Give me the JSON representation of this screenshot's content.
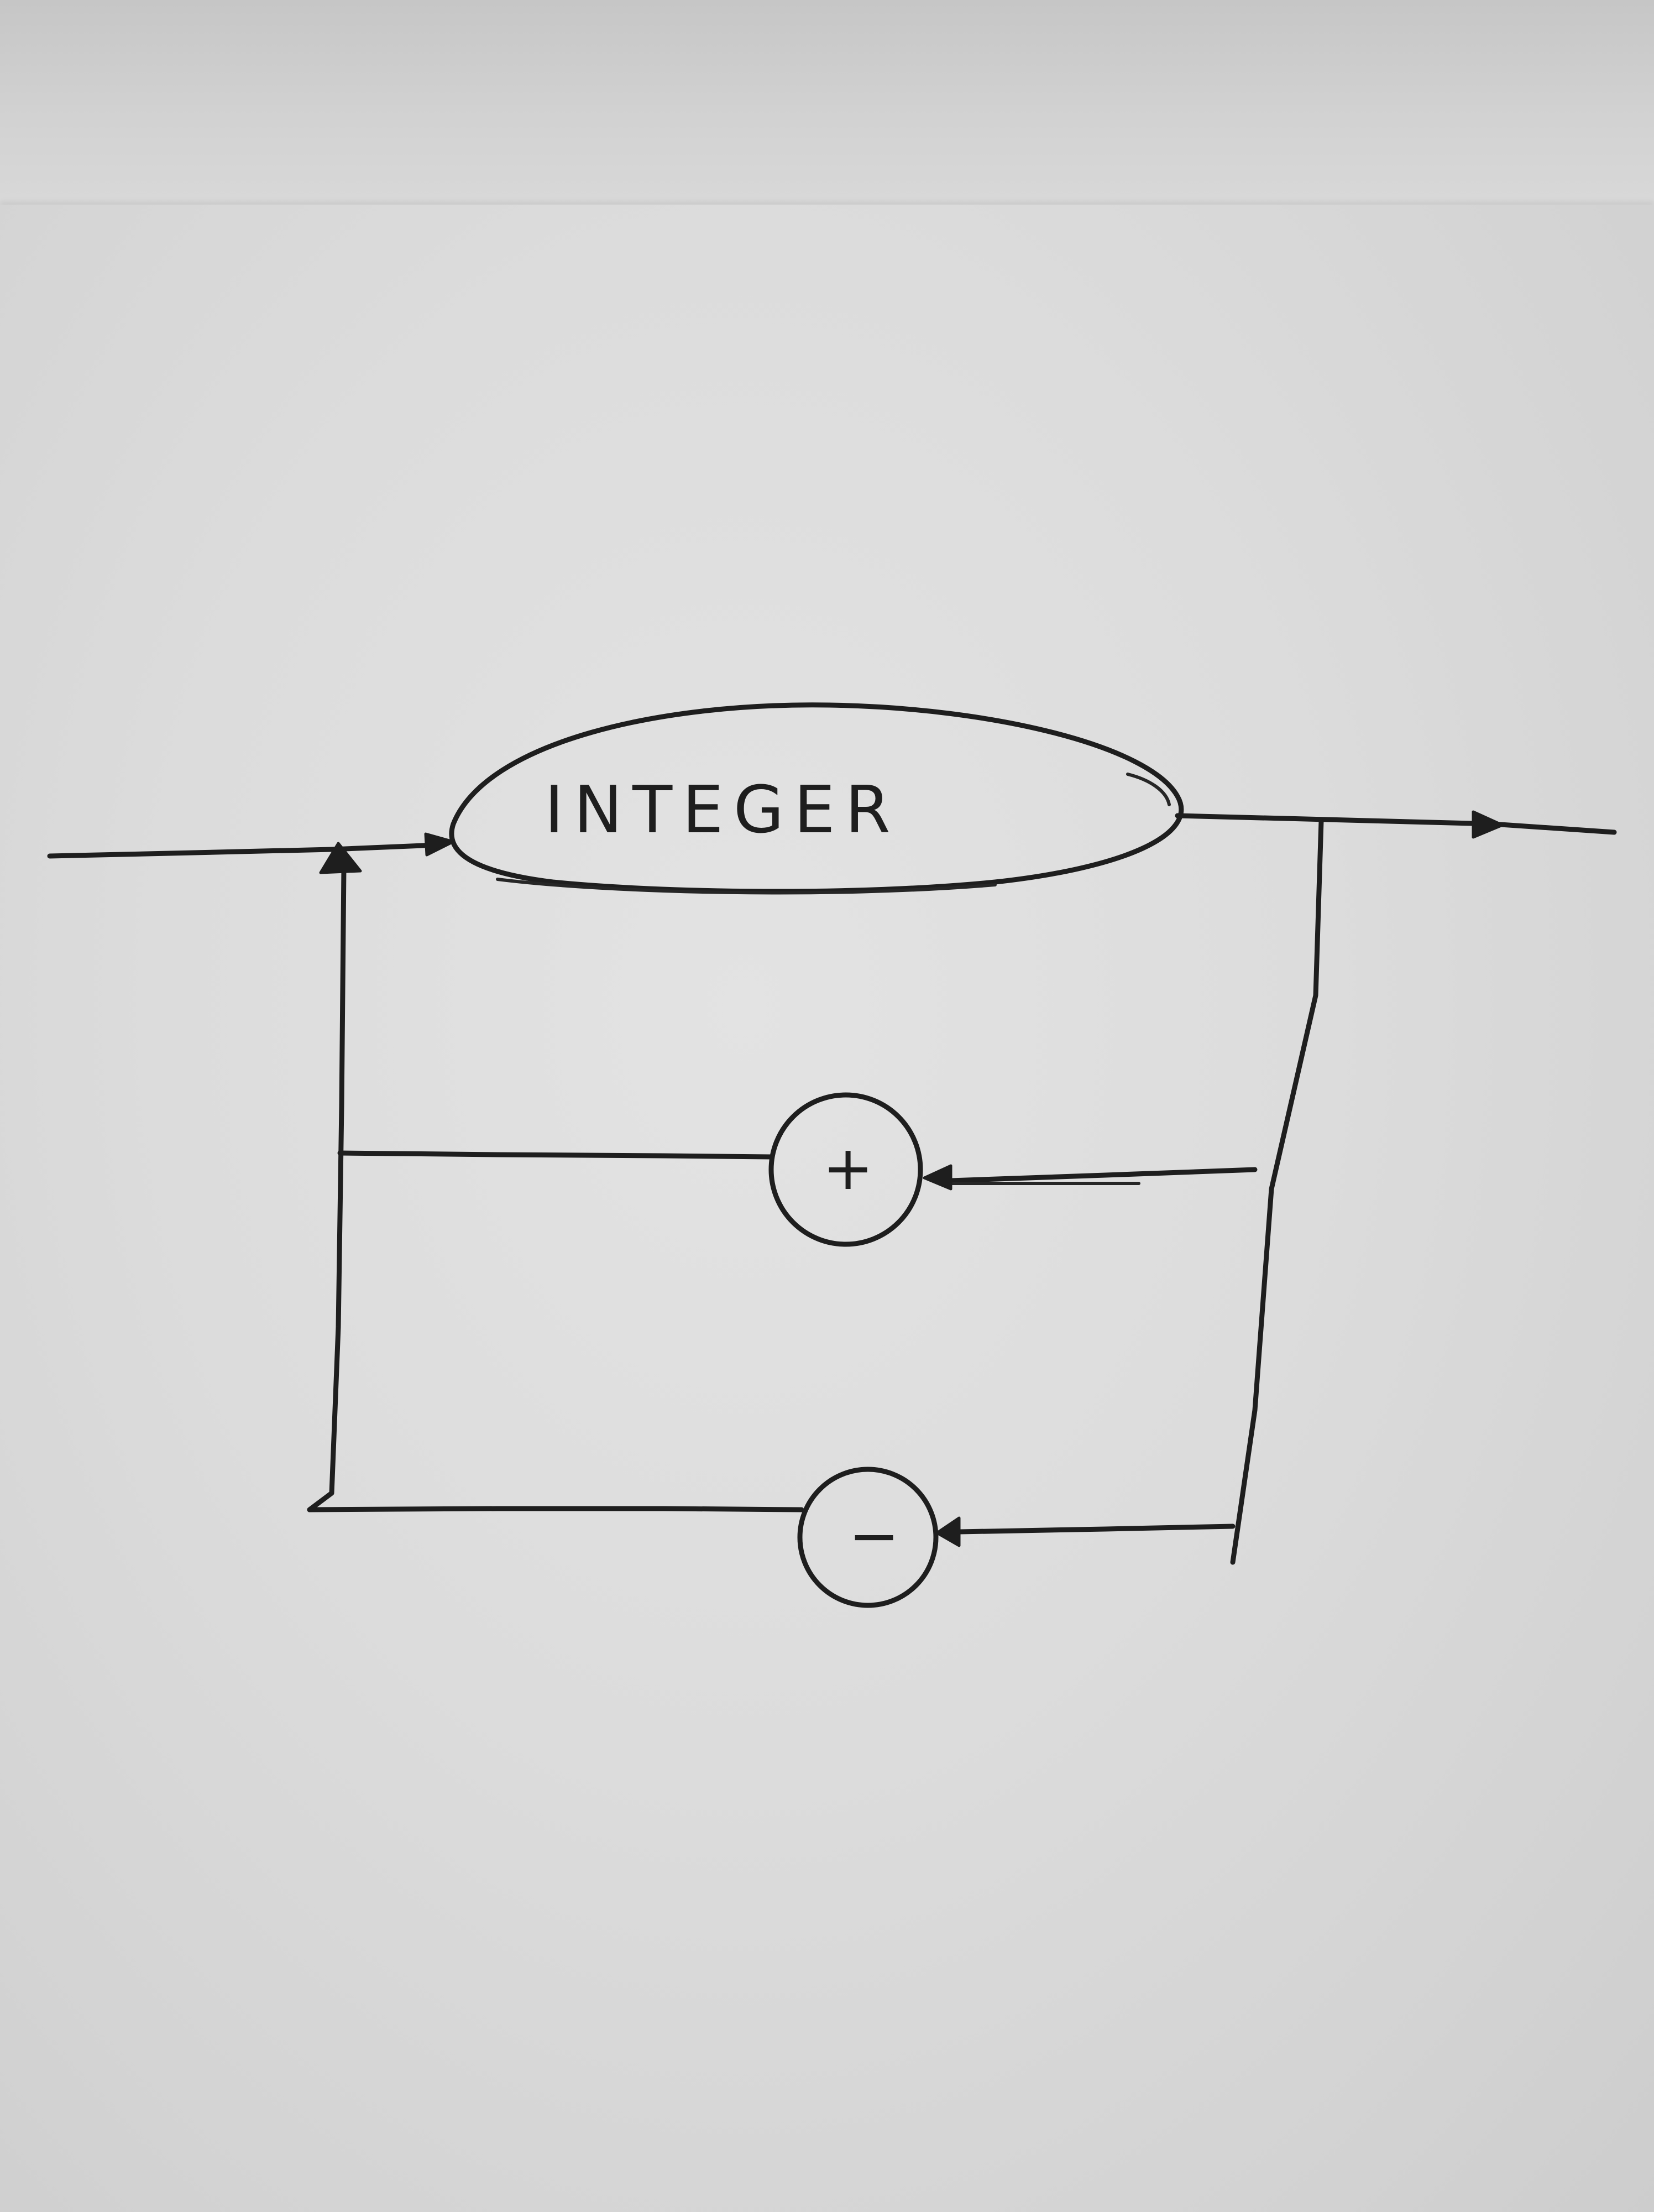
{
  "diagram": {
    "type": "railroad syntax diagram (hand-drawn)",
    "terminal": {
      "label": "INTEGER"
    },
    "operators": [
      {
        "symbol": "+"
      },
      {
        "symbol": "−"
      }
    ]
  }
}
